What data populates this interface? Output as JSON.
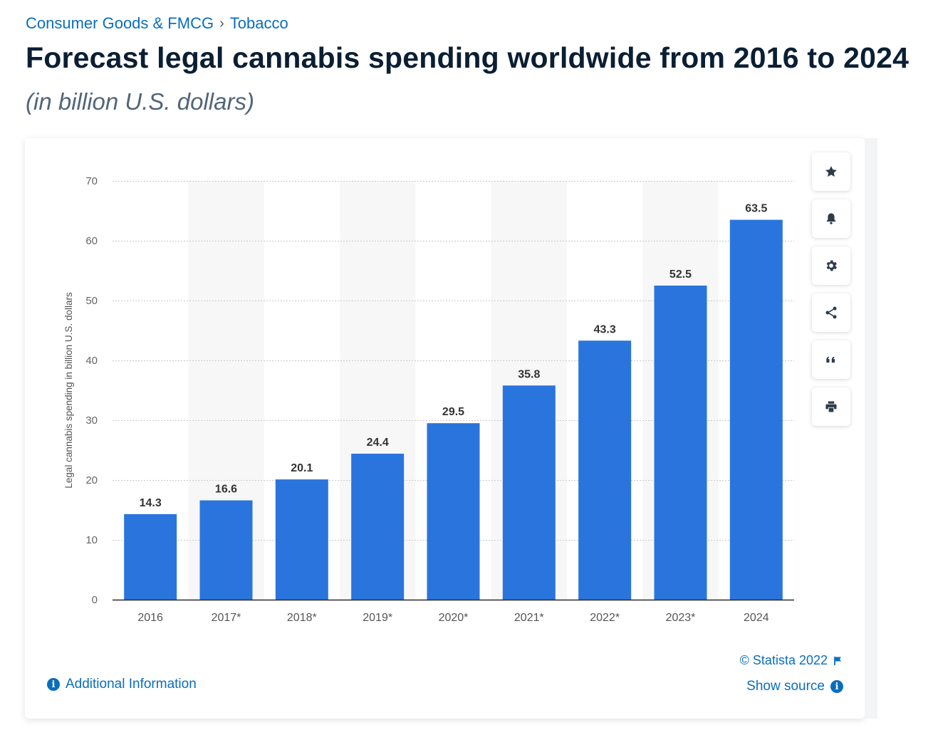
{
  "breadcrumb": {
    "category": "Consumer Goods & FMCG",
    "separator": "›",
    "subcategory": "Tobacco"
  },
  "title": "Forecast legal cannabis spending worldwide from 2016 to 2024",
  "subtitle": "(in billion U.S. dollars)",
  "chart_data": {
    "type": "bar",
    "categories": [
      "2016",
      "2017*",
      "2018*",
      "2019*",
      "2020*",
      "2021*",
      "2022*",
      "2023*",
      "2024"
    ],
    "values": [
      14.3,
      16.6,
      20.1,
      24.4,
      29.5,
      35.8,
      43.3,
      52.5,
      63.5
    ],
    "value_labels": [
      "14.3",
      "16.6",
      "20.1",
      "24.4",
      "29.5",
      "35.8",
      "43.3",
      "52.5",
      "63.5"
    ],
    "ylabel": "Legal cannabis spending in billion U.S. dollars",
    "xlabel": "",
    "ylim": [
      0,
      70
    ],
    "yticks": [
      0,
      10,
      20,
      30,
      40,
      50,
      60,
      70
    ],
    "grid": true,
    "bar_color": "#2a75dd",
    "alt_band_color": "#f7f7f8"
  },
  "side_actions": [
    {
      "icon": "star-icon"
    },
    {
      "icon": "bell-icon"
    },
    {
      "icon": "gear-icon"
    },
    {
      "icon": "share-icon"
    },
    {
      "icon": "quote-icon"
    },
    {
      "icon": "print-icon"
    }
  ],
  "footer": {
    "additional_info": "Additional Information",
    "copyright": "© Statista 2022",
    "show_source": "Show source",
    "info_glyph": "i"
  },
  "colors": {
    "link": "#0a6ebd",
    "title": "#0b1f33",
    "subtitle": "#52657a",
    "bar": "#2a75dd"
  }
}
